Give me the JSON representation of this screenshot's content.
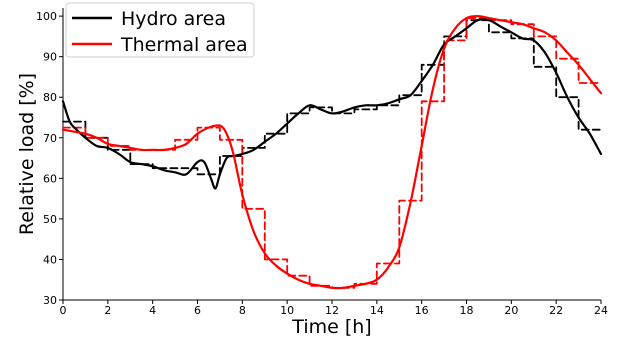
{
  "chart_data": {
    "type": "line",
    "xlabel": "Time [h]",
    "ylabel": "Relative load [%]",
    "xlim": [
      0,
      24
    ],
    "ylim": [
      30,
      102
    ],
    "xticks": [
      "0",
      "2",
      "4",
      "6",
      "8",
      "10",
      "12",
      "14",
      "16",
      "18",
      "20",
      "22",
      "24"
    ],
    "yticks": [
      "30",
      "40",
      "50",
      "60",
      "70",
      "80",
      "90",
      "100"
    ],
    "grid": false,
    "legend_position": "top-left",
    "series": [
      {
        "name": "Hydro area",
        "color": "#000000",
        "style": "solid",
        "x": [
          0,
          0.3,
          0.6,
          1,
          1.5,
          2,
          2.5,
          3,
          3.5,
          4,
          4.5,
          5,
          5.5,
          6,
          6.3,
          6.6,
          6.8,
          7,
          7.3,
          7.6,
          8,
          8.5,
          9,
          9.5,
          10,
          10.5,
          11,
          11.5,
          12,
          12.5,
          13,
          13.5,
          14,
          14.5,
          15,
          15.5,
          16,
          16.5,
          17,
          17.5,
          18,
          18.5,
          19,
          19.5,
          20,
          20.5,
          21,
          21.5,
          22,
          22.5,
          23,
          23.5,
          24
        ],
        "y": [
          79,
          74,
          72,
          70,
          68,
          67.5,
          66,
          64,
          63.5,
          63,
          62,
          61.5,
          61,
          64,
          64,
          60,
          57.5,
          61,
          65,
          65.5,
          66,
          67,
          69,
          71,
          73.5,
          76,
          78,
          77,
          76,
          76.5,
          77.5,
          78,
          78,
          78.5,
          79.5,
          80.5,
          84,
          88,
          93,
          95,
          97,
          99,
          99,
          97.5,
          96,
          94.5,
          94,
          91,
          86,
          80,
          75,
          71,
          66
        ]
      },
      {
        "name": "Thermal area",
        "color": "#ff0000",
        "style": "solid",
        "x": [
          0,
          0.5,
          1,
          1.5,
          2,
          2.5,
          3,
          3.5,
          4,
          4.5,
          5,
          5.5,
          6,
          6.5,
          7,
          7.3,
          7.6,
          8,
          8.5,
          9,
          9.5,
          10,
          10.5,
          11,
          11.5,
          12,
          12.5,
          13,
          13.5,
          14,
          14.5,
          15,
          15.5,
          16,
          16.5,
          17,
          17.5,
          18,
          18.5,
          19,
          19.5,
          20,
          20.5,
          21,
          21.5,
          22,
          22.5,
          23,
          23.5,
          24
        ],
        "y": [
          72,
          71.5,
          71,
          70,
          68.5,
          68,
          67.5,
          67,
          67,
          67,
          67.5,
          68.5,
          71,
          72.5,
          73,
          71,
          66,
          56,
          47,
          41.5,
          38.5,
          36.5,
          35,
          34,
          33.5,
          33,
          33,
          33.5,
          34,
          35,
          38,
          43,
          54,
          68,
          82,
          92,
          97,
          99.5,
          100,
          99.5,
          99,
          98.5,
          98,
          97,
          96,
          94,
          91,
          88,
          84.5,
          81
        ]
      },
      {
        "name": "",
        "color": "#000000",
        "style": "dashed-step",
        "x": [
          0,
          1,
          2,
          3,
          4,
          5,
          6,
          7,
          8,
          9,
          10,
          11,
          12,
          13,
          14,
          15,
          16,
          17,
          18,
          19,
          20,
          21,
          22,
          23,
          24
        ],
        "y": [
          74,
          70,
          67,
          63.5,
          62.5,
          62.5,
          61,
          65.5,
          67.5,
          71,
          76,
          77.5,
          76,
          77,
          78,
          80.5,
          88,
          95,
          99,
          96,
          94.5,
          87.5,
          80,
          72,
          72
        ]
      },
      {
        "name": "",
        "color": "#ff0000",
        "style": "dashed-step",
        "x": [
          0,
          1,
          2,
          3,
          4,
          5,
          6,
          7,
          8,
          9,
          10,
          11,
          12,
          13,
          14,
          15,
          16,
          17,
          18,
          19,
          20,
          21,
          22,
          23,
          24
        ],
        "y": [
          72.5,
          70,
          68,
          67,
          67,
          69.5,
          72.5,
          69.5,
          52.5,
          40,
          36,
          33.5,
          33,
          34,
          39,
          54.5,
          79,
          94,
          99.5,
          99,
          98,
          95,
          89.5,
          83.5,
          83.5
        ]
      }
    ]
  }
}
